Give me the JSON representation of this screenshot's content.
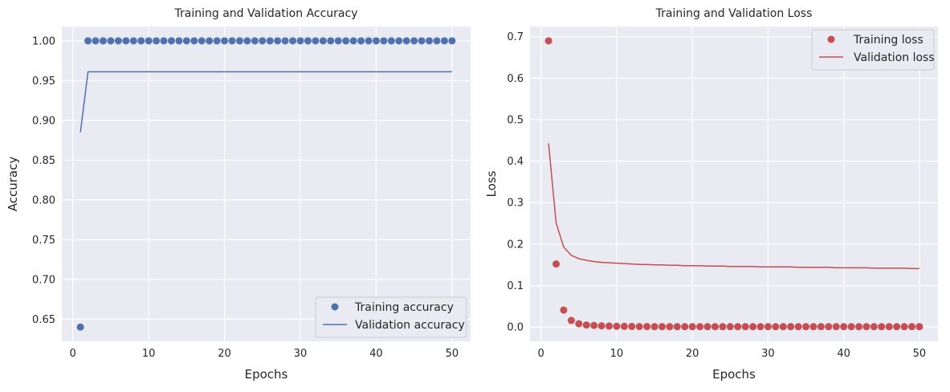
{
  "chart_data": [
    {
      "type": "line",
      "title": "Training and Validation Accuracy",
      "xlabel": "Epochs",
      "ylabel": "Accuracy",
      "xlim": [
        -1.45,
        52.45
      ],
      "ylim": [
        0.622,
        1.018
      ],
      "xticks": [
        0,
        10,
        20,
        30,
        40,
        50
      ],
      "yticks": [
        0.65,
        0.7,
        0.75,
        0.8,
        0.85,
        0.9,
        0.95,
        1.0
      ],
      "ytick_labels": [
        "0.65",
        "0.70",
        "0.75",
        "0.80",
        "0.85",
        "0.90",
        "0.95",
        "1.00"
      ],
      "grid": true,
      "legend_position": "lower-right",
      "series": [
        {
          "name": "Training accuracy",
          "style": "points",
          "color": "#4c72b0",
          "x": [
            1,
            2,
            3,
            4,
            5,
            6,
            7,
            8,
            9,
            10,
            11,
            12,
            13,
            14,
            15,
            16,
            17,
            18,
            19,
            20,
            21,
            22,
            23,
            24,
            25,
            26,
            27,
            28,
            29,
            30,
            31,
            32,
            33,
            34,
            35,
            36,
            37,
            38,
            39,
            40,
            41,
            42,
            43,
            44,
            45,
            46,
            47,
            48,
            49,
            50
          ],
          "y": [
            0.64,
            1.0,
            1.0,
            1.0,
            1.0,
            1.0,
            1.0,
            1.0,
            1.0,
            1.0,
            1.0,
            1.0,
            1.0,
            1.0,
            1.0,
            1.0,
            1.0,
            1.0,
            1.0,
            1.0,
            1.0,
            1.0,
            1.0,
            1.0,
            1.0,
            1.0,
            1.0,
            1.0,
            1.0,
            1.0,
            1.0,
            1.0,
            1.0,
            1.0,
            1.0,
            1.0,
            1.0,
            1.0,
            1.0,
            1.0,
            1.0,
            1.0,
            1.0,
            1.0,
            1.0,
            1.0,
            1.0,
            1.0,
            1.0,
            1.0
          ]
        },
        {
          "name": "Validation accuracy",
          "style": "line",
          "color": "#4c72b0",
          "x": [
            1,
            2,
            3,
            4,
            5,
            6,
            7,
            8,
            9,
            10,
            11,
            12,
            13,
            14,
            15,
            16,
            17,
            18,
            19,
            20,
            21,
            22,
            23,
            24,
            25,
            26,
            27,
            28,
            29,
            30,
            31,
            32,
            33,
            34,
            35,
            36,
            37,
            38,
            39,
            40,
            41,
            42,
            43,
            44,
            45,
            46,
            47,
            48,
            49,
            50
          ],
          "y": [
            0.885,
            0.961,
            0.961,
            0.961,
            0.961,
            0.961,
            0.961,
            0.961,
            0.961,
            0.961,
            0.961,
            0.961,
            0.961,
            0.961,
            0.961,
            0.961,
            0.961,
            0.961,
            0.961,
            0.961,
            0.961,
            0.961,
            0.961,
            0.961,
            0.961,
            0.961,
            0.961,
            0.961,
            0.961,
            0.961,
            0.961,
            0.961,
            0.961,
            0.961,
            0.961,
            0.961,
            0.961,
            0.961,
            0.961,
            0.961,
            0.961,
            0.961,
            0.961,
            0.961,
            0.961,
            0.961,
            0.961,
            0.961,
            0.961,
            0.961
          ]
        }
      ]
    },
    {
      "type": "line",
      "title": "Training and Validation Loss",
      "xlabel": "Epochs",
      "ylabel": "Loss",
      "xlim": [
        -1.45,
        52.45
      ],
      "ylim": [
        -0.0345,
        0.7245
      ],
      "xticks": [
        0,
        10,
        20,
        30,
        40,
        50
      ],
      "yticks": [
        0.0,
        0.1,
        0.2,
        0.3,
        0.4,
        0.5,
        0.6,
        0.7
      ],
      "ytick_labels": [
        "0.0",
        "0.1",
        "0.2",
        "0.3",
        "0.4",
        "0.5",
        "0.6",
        "0.7"
      ],
      "grid": true,
      "legend_position": "upper-right",
      "series": [
        {
          "name": "Training loss",
          "style": "points",
          "color": "#c44e52",
          "x": [
            1,
            2,
            3,
            4,
            5,
            6,
            7,
            8,
            9,
            10,
            11,
            12,
            13,
            14,
            15,
            16,
            17,
            18,
            19,
            20,
            21,
            22,
            23,
            24,
            25,
            26,
            27,
            28,
            29,
            30,
            31,
            32,
            33,
            34,
            35,
            36,
            37,
            38,
            39,
            40,
            41,
            42,
            43,
            44,
            45,
            46,
            47,
            48,
            49,
            50
          ],
          "y": [
            0.69,
            0.152,
            0.041,
            0.016,
            0.008,
            0.005,
            0.004,
            0.003,
            0.0025,
            0.002,
            0.0017,
            0.0015,
            0.0013,
            0.0012,
            0.001,
            0.001,
            0.001,
            0.001,
            0.001,
            0.001,
            0.001,
            0.001,
            0.001,
            0.001,
            0.001,
            0.001,
            0.001,
            0.001,
            0.001,
            0.001,
            0.001,
            0.001,
            0.001,
            0.001,
            0.001,
            0.001,
            0.001,
            0.001,
            0.001,
            0.001,
            0.001,
            0.001,
            0.001,
            0.001,
            0.001,
            0.001,
            0.001,
            0.001,
            0.001,
            0.001
          ]
        },
        {
          "name": "Validation loss",
          "style": "line",
          "color": "#c44e52",
          "x": [
            1,
            2,
            3,
            4,
            5,
            6,
            7,
            8,
            9,
            10,
            11,
            12,
            13,
            14,
            15,
            16,
            17,
            18,
            19,
            20,
            21,
            22,
            23,
            24,
            25,
            26,
            27,
            28,
            29,
            30,
            31,
            32,
            33,
            34,
            35,
            36,
            37,
            38,
            39,
            40,
            41,
            42,
            43,
            44,
            45,
            46,
            47,
            48,
            49,
            50
          ],
          "y": [
            0.443,
            0.251,
            0.193,
            0.173,
            0.165,
            0.161,
            0.158,
            0.156,
            0.155,
            0.154,
            0.153,
            0.152,
            0.151,
            0.151,
            0.15,
            0.15,
            0.149,
            0.149,
            0.148,
            0.148,
            0.148,
            0.147,
            0.147,
            0.147,
            0.146,
            0.146,
            0.146,
            0.146,
            0.145,
            0.145,
            0.145,
            0.145,
            0.145,
            0.144,
            0.144,
            0.144,
            0.144,
            0.144,
            0.143,
            0.143,
            0.143,
            0.143,
            0.143,
            0.142,
            0.142,
            0.142,
            0.142,
            0.142,
            0.141,
            0.141
          ]
        }
      ]
    }
  ]
}
